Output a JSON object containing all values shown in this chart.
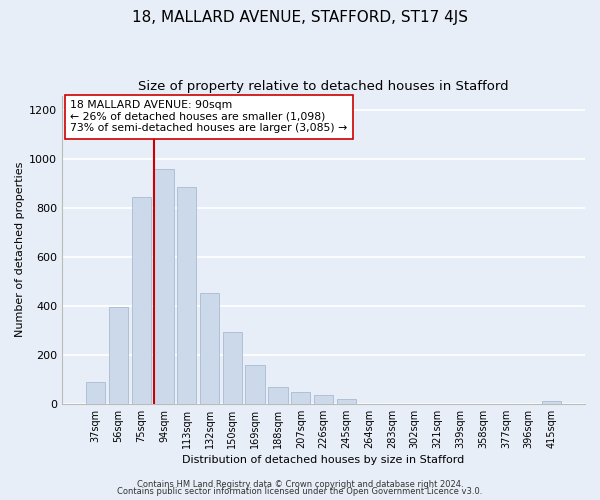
{
  "title": "18, MALLARD AVENUE, STAFFORD, ST17 4JS",
  "subtitle": "Size of property relative to detached houses in Stafford",
  "xlabel": "Distribution of detached houses by size in Stafford",
  "ylabel": "Number of detached properties",
  "categories": [
    "37sqm",
    "56sqm",
    "75sqm",
    "94sqm",
    "113sqm",
    "132sqm",
    "150sqm",
    "169sqm",
    "188sqm",
    "207sqm",
    "226sqm",
    "245sqm",
    "264sqm",
    "283sqm",
    "302sqm",
    "321sqm",
    "339sqm",
    "358sqm",
    "377sqm",
    "396sqm",
    "415sqm"
  ],
  "values": [
    90,
    395,
    845,
    960,
    885,
    455,
    295,
    160,
    70,
    50,
    35,
    20,
    0,
    0,
    0,
    0,
    0,
    0,
    0,
    0,
    10
  ],
  "bar_color": "#ccd9ea",
  "bar_edge_color": "#aabbd0",
  "vline_color": "#cc0000",
  "annotation_text": "18 MALLARD AVENUE: 90sqm\n← 26% of detached houses are smaller (1,098)\n73% of semi-detached houses are larger (3,085) →",
  "annotation_box_color": "#ffffff",
  "annotation_box_edge": "#cc0000",
  "ylim": [
    0,
    1260
  ],
  "yticks": [
    0,
    200,
    400,
    600,
    800,
    1000,
    1200
  ],
  "footer_line1": "Contains HM Land Registry data © Crown copyright and database right 2024.",
  "footer_line2": "Contains public sector information licensed under the Open Government Licence v3.0.",
  "bg_color": "#e8eef7",
  "plot_bg_color": "#e8eef7",
  "title_fontsize": 11,
  "subtitle_fontsize": 9.5,
  "axis_fontsize": 8,
  "tick_fontsize": 7,
  "figsize": [
    6.0,
    5.0
  ],
  "dpi": 100
}
